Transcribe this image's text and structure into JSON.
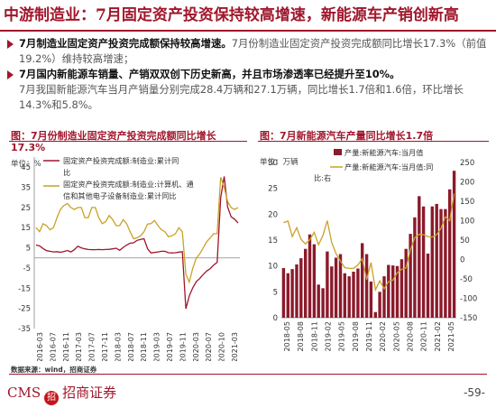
{
  "header": {
    "title": "中游制造业：7月固定资产投资保持较高增速，新能源车产销创新高"
  },
  "bullets": [
    {
      "bold": "7月制造业固定资产投资完成额保持较高增速。",
      "rest": "7月份制造业固定资产投资完成额同比增长17.3%（前值19.2%）维持较高增速；"
    },
    {
      "bold": "7月国内新能源车销量、产销双双创下历史新高，并且市场渗透率已经提升至10%。",
      "rest": "7月我国新能源汽车当月产销量分别完成28.4万辆和27.1万辆，同比增长1.7倍和1.6倍，环比增长14.3%和5.8%。"
    }
  ],
  "source": "数据来源：wind，招商证券",
  "footer": {
    "logo_left": "CMS",
    "logo_mark": "招",
    "logo_right": "招商证券",
    "page": "-59-"
  },
  "colors": {
    "brand": "#a0162b",
    "series_red": "#a0162b",
    "series_gold": "#c9a227"
  },
  "chart_data": [
    {
      "type": "line",
      "title": "图：7月份制造业固定资产投资完成额同比增长17.3%",
      "title_line1": "图：7月份制造业固定资产投资完成额同比增长",
      "title_line2": "17.3%",
      "unit": "单位：%",
      "ylim": [
        -35,
        50
      ],
      "yticks": [
        -35,
        -25,
        -15,
        -5,
        5,
        15,
        25,
        35,
        45
      ],
      "ytick_labels": [
        "-35",
        "-25",
        "-15",
        "-5",
        "5",
        "15",
        "25",
        "35",
        "45"
      ],
      "x_tick_labels": [
        "2016-03",
        "2016-07",
        "2016-11",
        "2017-03",
        "2017-07",
        "2017-11",
        "2018-03",
        "2018-07",
        "2018-11",
        "2019-03",
        "2019-07",
        "2019-11",
        "2020-03",
        "2020-07",
        "2020-10",
        "2021-03"
      ],
      "legend": "top",
      "series": [
        {
          "name": "固定资产投资完成额:制造业:累计同比",
          "legend_lines": [
            "固定资产投资完成额:制造业:累计同",
            "比"
          ],
          "values": [
            6.4,
            6,
            4.7,
            3.6,
            3.3,
            3,
            3.1,
            2.8,
            3.2,
            3.7,
            3,
            4.1,
            5.8,
            5,
            4.5,
            4.2,
            4.1,
            4.1,
            4.2,
            4.1,
            4.2,
            4.3,
            4.5,
            4.8,
            3.8,
            5.2,
            6.4,
            7.3,
            7.5,
            8.7,
            9.2,
            9.5,
            4.6,
            2.5,
            2.7,
            3,
            3.3,
            3.3,
            2.6,
            2.5,
            2.6,
            2.9,
            3.1,
            -25.2,
            -18.8,
            -14.8,
            -11.7,
            -10.2,
            -8.1,
            -6.5,
            -5.3,
            -3.5,
            -2.2,
            29.8,
            40.4,
            25.2,
            20.4,
            19.2,
            17.3
          ]
        },
        {
          "name": "固定资产投资完成额:制造业:计算机、通信和其他电子设备制造业:累计同比",
          "legend_lines": [
            "固定资产投资完成额:制造业:计算机、通",
            "信和其他电子设备制造业:累计同比"
          ],
          "values": [
            15,
            13,
            17,
            16,
            14,
            15,
            20,
            24,
            26,
            27,
            25,
            24,
            25,
            25,
            20,
            20,
            25,
            25,
            20,
            17,
            18,
            21,
            19,
            16,
            16,
            19,
            17,
            13,
            9.5,
            10,
            11,
            13,
            16.8,
            17,
            18.5,
            16,
            14,
            13,
            10.5,
            11,
            12,
            15,
            13,
            -8,
            -12,
            -5,
            0,
            2,
            5,
            8,
            10,
            12,
            12,
            40,
            35,
            28,
            25,
            24,
            25
          ]
        }
      ]
    },
    {
      "type": "bar+line",
      "title": "图：7月新能源汽车产量同比增长1.7倍",
      "unit_left": "单位：万辆",
      "ylim_left": [
        0,
        30
      ],
      "yticks_left": [
        "0",
        "5",
        "10",
        "15",
        "20",
        "25",
        "30"
      ],
      "ylim_right": [
        -150,
        250
      ],
      "yticks_right": [
        "-150",
        "-100",
        "-50",
        "0",
        "50",
        "100",
        "150",
        "200",
        "250"
      ],
      "x_tick_labels": [
        "2018-05",
        "2018-08",
        "2018-11",
        "2019-02",
        "2019-05",
        "2019-08",
        "2019-11",
        "2020-02",
        "2020-05",
        "2020-08",
        "2020-11",
        "2021-02",
        "2021-05"
      ],
      "legend": "top-right",
      "series": [
        {
          "name": "产量:新能源汽车:当月值",
          "axis": "left",
          "values": [
            9.6,
            8.6,
            9.4,
            10.3,
            11.5,
            13.3,
            16.1,
            14.2,
            6.4,
            5.7,
            12.8,
            9.9,
            11.6,
            12.3,
            8.6,
            8,
            8.9,
            9.5,
            14.4,
            12.3,
            7,
            1.1,
            5,
            8,
            10.2,
            10.1,
            10,
            11.3,
            13.3,
            16.2,
            19.4,
            23.5,
            21.5,
            12.4,
            21.5,
            22,
            21,
            21,
            24.8,
            28.4
          ]
        },
        {
          "name": "产量:新能源汽车:当月值:同比:右",
          "axis": "right",
          "legend_lines": [
            "产量:新能源汽车:当月值:同",
            "比:右"
          ],
          "values": [
            95,
            99,
            59,
            82,
            52,
            40,
            51,
            70,
            38,
            62,
            100,
            44,
            15,
            -4,
            -21,
            -23,
            -23,
            -14,
            2,
            -52,
            -8,
            -78,
            -55,
            -75,
            -57,
            -53,
            -34,
            -25,
            -22,
            25,
            56,
            65,
            64,
            59,
            58,
            64,
            80,
            110,
            100,
            170
          ]
        }
      ]
    }
  ]
}
